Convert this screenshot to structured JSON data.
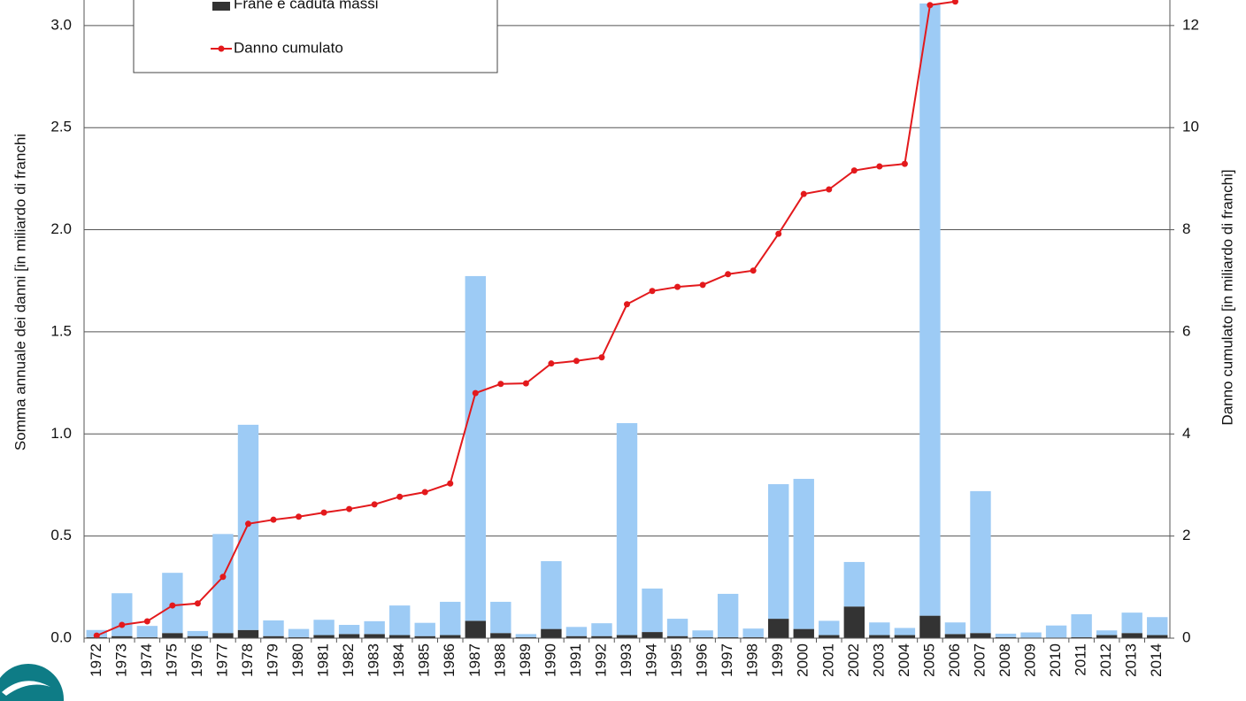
{
  "chart_data": {
    "type": "stacked-bar-line",
    "y_label": "Somma annuale dei danni [in  miliardo di franchi",
    "y2_label": "Danno cumulato [in miliardo di franchi]",
    "categories": [
      "1972",
      "1973",
      "1974",
      "1975",
      "1976",
      "1977",
      "1978",
      "1979",
      "1980",
      "1981",
      "1982",
      "1983",
      "1984",
      "1985",
      "1986",
      "1987",
      "1988",
      "1989",
      "1990",
      "1991",
      "1992",
      "1993",
      "1994",
      "1995",
      "1996",
      "1997",
      "1998",
      "1999",
      "2000",
      "2001",
      "2002",
      "2003",
      "2004",
      "2005",
      "2006",
      "2007",
      "2008",
      "2009",
      "2010",
      "2011",
      "2012",
      "2013",
      "2014"
    ],
    "series": [
      {
        "name": "Frane e caduta massi",
        "type": "bar",
        "color": "#333333",
        "values": [
          0.005,
          0.01,
          0.005,
          0.025,
          0.01,
          0.025,
          0.04,
          0.01,
          0.005,
          0.015,
          0.02,
          0.02,
          0.015,
          0.01,
          0.015,
          0.085,
          0.025,
          0.005,
          0.045,
          0.01,
          0.01,
          0.015,
          0.03,
          0.01,
          0.005,
          0.005,
          0.005,
          0.095,
          0.045,
          0.015,
          0.155,
          0.015,
          0.015,
          0.11,
          0.02,
          0.025,
          0.005,
          0.003,
          0.003,
          0.005,
          0.015,
          0.025,
          0.015
        ]
      },
      {
        "type": "bar",
        "color": "#9dcbf5",
        "values": [
          0.035,
          0.21,
          0.055,
          0.295,
          0.025,
          0.485,
          1.005,
          0.077,
          0.04,
          0.075,
          0.045,
          0.063,
          0.145,
          0.065,
          0.163,
          1.688,
          0.153,
          0.015,
          0.332,
          0.045,
          0.063,
          1.038,
          0.213,
          0.085,
          0.033,
          0.212,
          0.042,
          0.659,
          0.735,
          0.07,
          0.218,
          0.062,
          0.035,
          2.998,
          0.057,
          0.695,
          0.017,
          0.025,
          0.059,
          0.112,
          0.023,
          0.1,
          0.088
        ]
      },
      {
        "name": "Danno cumulato",
        "type": "line",
        "axis": "y2",
        "color": "#e3191c",
        "values": [
          0.05,
          0.26,
          0.33,
          0.64,
          0.68,
          1.2,
          2.24,
          2.32,
          2.38,
          2.46,
          2.53,
          2.62,
          2.77,
          2.86,
          3.03,
          4.8,
          4.98,
          4.99,
          5.38,
          5.43,
          5.5,
          6.54,
          6.8,
          6.88,
          6.92,
          7.13,
          7.2,
          7.92,
          8.7,
          8.79,
          9.16,
          9.24,
          9.29,
          12.4,
          12.47,
          null,
          null,
          null,
          null,
          null,
          null,
          null,
          null
        ]
      }
    ],
    "ylim": [
      0,
      3.125
    ],
    "yticks": [
      {
        "value": 0,
        "label": "0.0"
      },
      0.5,
      {
        "value": 1,
        "label": "1.0"
      },
      1.5,
      {
        "value": 2,
        "label": "2.0"
      },
      2.5,
      {
        "value": 3,
        "label": "3.0"
      }
    ],
    "y2lim": [
      0,
      12.5
    ],
    "y2ticks": [
      0,
      2,
      4,
      6,
      8,
      10,
      12
    ],
    "grid": true,
    "legend": "top-left"
  }
}
